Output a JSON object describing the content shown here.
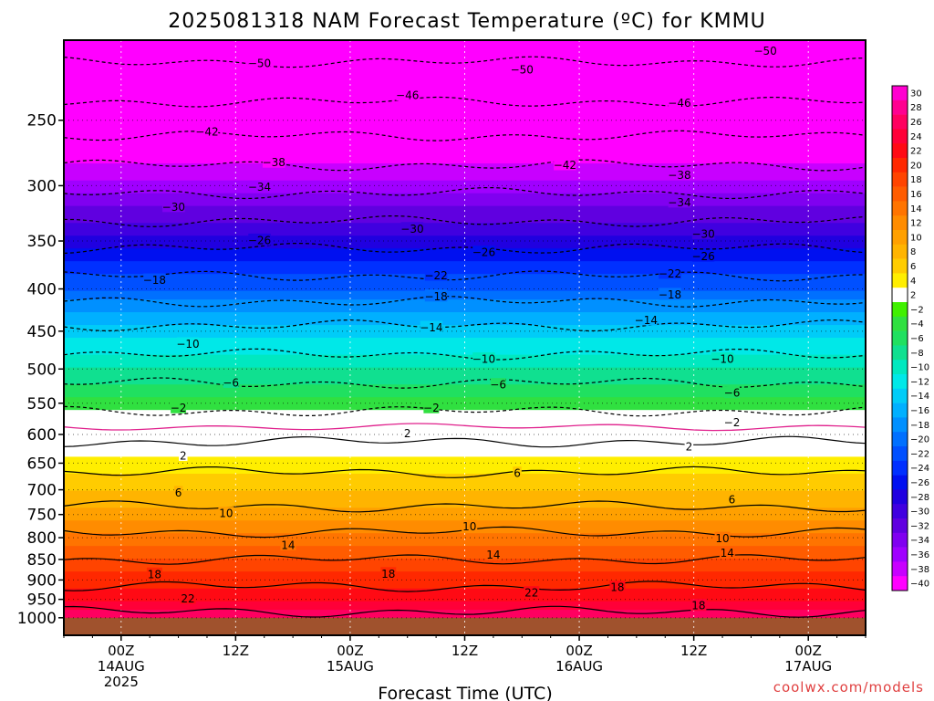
{
  "chart_data": {
    "type": "heatmap",
    "title": "2025081318 NAM Forecast Temperature (ºC) for KMMU",
    "xlabel": "Forecast Time (UTC)",
    "ylabel": "",
    "credit": "coolwx.com/models",
    "y_scale": "log",
    "y_inverted": true,
    "y_ticks": [
      250,
      300,
      350,
      400,
      450,
      500,
      550,
      600,
      650,
      700,
      750,
      800,
      850,
      900,
      950,
      1000
    ],
    "ylim": [
      200,
      1050
    ],
    "x_ticks": [
      {
        "line1": "00Z",
        "line2": "14AUG",
        "line3": "2025"
      },
      {
        "line1": "12Z",
        "line2": "",
        "line3": ""
      },
      {
        "line1": "00Z",
        "line2": "15AUG",
        "line3": ""
      },
      {
        "line1": "12Z",
        "line2": "",
        "line3": ""
      },
      {
        "line1": "00Z",
        "line2": "16AUG",
        "line3": ""
      },
      {
        "line1": "12Z",
        "line2": "",
        "line3": ""
      },
      {
        "line1": "00Z",
        "line2": "17AUG",
        "line3": ""
      }
    ],
    "x_tick_hours": [
      6,
      18,
      30,
      42,
      54,
      66,
      78
    ],
    "xlim_hours": [
      0,
      84
    ],
    "ground_pressure": 1000,
    "colorbar": {
      "labels": [
        "30",
        "28",
        "26",
        "24",
        "22",
        "20",
        "18",
        "16",
        "14",
        "12",
        "10",
        "8",
        "6",
        "4",
        "2",
        "−2",
        "−4",
        "−6",
        "−8",
        "−10",
        "−12",
        "−14",
        "−16",
        "−18",
        "−20",
        "−22",
        "−24",
        "−26",
        "−28",
        "−30",
        "−32",
        "−34",
        "−36",
        "−38",
        "−40"
      ],
      "colors": [
        "#ff00d0",
        "#ff0090",
        "#ff0060",
        "#ff0038",
        "#ff0a14",
        "#ff2800",
        "#ff4400",
        "#ff5c00",
        "#ff7400",
        "#ff8c00",
        "#ffa000",
        "#ffb400",
        "#ffcc00",
        "#ffee00",
        "#ffffff",
        "#40f000",
        "#30e040",
        "#20e060",
        "#10e090",
        "#00e8c0",
        "#00e8e8",
        "#00ccf8",
        "#00b0ff",
        "#0090ff",
        "#0070ff",
        "#0050ff",
        "#0030ff",
        "#0010f0",
        "#2000e0",
        "#4000e0",
        "#6000e0",
        "#8000f0",
        "#a000ff",
        "#c800ff",
        "#ff00ff"
      ]
    },
    "temperature_profile": {
      "pressures": [
        200,
        250,
        300,
        350,
        400,
        450,
        500,
        550,
        600,
        650,
        700,
        750,
        800,
        850,
        900,
        950,
        1000
      ],
      "temps": [
        -52,
        -44,
        -35,
        -27,
        -20,
        -13,
        -8,
        -3,
        1,
        5,
        8,
        11,
        15,
        18,
        21,
        24,
        27
      ]
    },
    "contour_labels": [
      {
        "text": "−50",
        "x_hour": 20.5,
        "p": 213
      },
      {
        "text": "−50",
        "x_hour": 48,
        "p": 217
      },
      {
        "text": "−50",
        "x_hour": 73.5,
        "p": 206
      },
      {
        "text": "−46",
        "x_hour": 36,
        "p": 233
      },
      {
        "text": "−46",
        "x_hour": 64.5,
        "p": 238
      },
      {
        "text": "−42",
        "x_hour": 15,
        "p": 258
      },
      {
        "text": "−42",
        "x_hour": 52.5,
        "p": 283
      },
      {
        "text": "−38",
        "x_hour": 22,
        "p": 281
      },
      {
        "text": "−38",
        "x_hour": 64.5,
        "p": 291
      },
      {
        "text": "−34",
        "x_hour": 20.5,
        "p": 301
      },
      {
        "text": "−34",
        "x_hour": 64.5,
        "p": 314
      },
      {
        "text": "−30",
        "x_hour": 11.5,
        "p": 318
      },
      {
        "text": "−30",
        "x_hour": 36.5,
        "p": 338
      },
      {
        "text": "−30",
        "x_hour": 67,
        "p": 343
      },
      {
        "text": "−26",
        "x_hour": 20.5,
        "p": 349
      },
      {
        "text": "−26",
        "x_hour": 44,
        "p": 361
      },
      {
        "text": "−26",
        "x_hour": 67,
        "p": 365
      },
      {
        "text": "−22",
        "x_hour": 39,
        "p": 385
      },
      {
        "text": "−22",
        "x_hour": 63.5,
        "p": 383
      },
      {
        "text": "−18",
        "x_hour": 9.5,
        "p": 390
      },
      {
        "text": "−18",
        "x_hour": 39,
        "p": 408
      },
      {
        "text": "−18",
        "x_hour": 63.5,
        "p": 406
      },
      {
        "text": "−14",
        "x_hour": 38.5,
        "p": 445
      },
      {
        "text": "−14",
        "x_hour": 61,
        "p": 436
      },
      {
        "text": "−10",
        "x_hour": 13,
        "p": 466
      },
      {
        "text": "−10",
        "x_hour": 44,
        "p": 486
      },
      {
        "text": "−10",
        "x_hour": 69,
        "p": 486
      },
      {
        "text": "−6",
        "x_hour": 17.5,
        "p": 519
      },
      {
        "text": "−6",
        "x_hour": 45.5,
        "p": 522
      },
      {
        "text": "−6",
        "x_hour": 70,
        "p": 534
      },
      {
        "text": "−2",
        "x_hour": 12,
        "p": 557
      },
      {
        "text": "−2",
        "x_hour": 38.5,
        "p": 557
      },
      {
        "text": "−2",
        "x_hour": 70,
        "p": 580
      },
      {
        "text": "2",
        "x_hour": 36,
        "p": 598
      },
      {
        "text": "2",
        "x_hour": 12.5,
        "p": 636
      },
      {
        "text": "2",
        "x_hour": 65.5,
        "p": 620
      },
      {
        "text": "6",
        "x_hour": 47.5,
        "p": 668
      },
      {
        "text": "6",
        "x_hour": 12,
        "p": 705
      },
      {
        "text": "6",
        "x_hour": 70,
        "p": 719
      },
      {
        "text": "10",
        "x_hour": 17,
        "p": 747
      },
      {
        "text": "10",
        "x_hour": 42.5,
        "p": 775
      },
      {
        "text": "10",
        "x_hour": 69,
        "p": 801
      },
      {
        "text": "14",
        "x_hour": 23.5,
        "p": 816
      },
      {
        "text": "14",
        "x_hour": 45,
        "p": 838
      },
      {
        "text": "14",
        "x_hour": 69.5,
        "p": 834
      },
      {
        "text": "18",
        "x_hour": 9.5,
        "p": 885
      },
      {
        "text": "18",
        "x_hour": 34,
        "p": 884
      },
      {
        "text": "18",
        "x_hour": 58,
        "p": 918
      },
      {
        "text": "18",
        "x_hour": 66.5,
        "p": 966
      },
      {
        "text": "22",
        "x_hour": 13,
        "p": 947
      },
      {
        "text": "22",
        "x_hour": 49,
        "p": 932
      }
    ]
  }
}
